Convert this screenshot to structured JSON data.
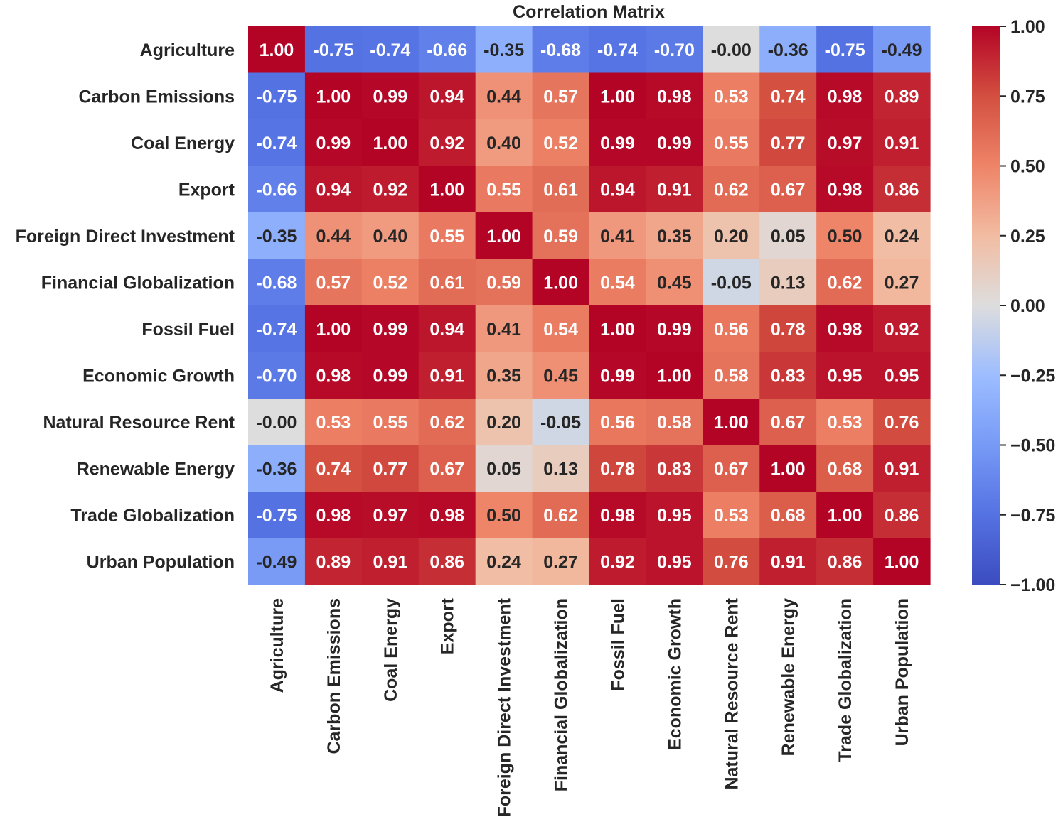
{
  "chart_data": {
    "type": "heatmap",
    "title": "Correlation Matrix",
    "xlabel": "",
    "ylabel": "",
    "labels": [
      "Agriculture",
      "Carbon Emissions",
      "Coal Energy",
      "Export",
      "Foreign Direct Investment",
      "Financial Globalization",
      "Fossil Fuel",
      "Economic Growth",
      "Natural Resource Rent",
      "Renewable Energy",
      "Trade Globalization",
      "Urban Population"
    ],
    "values": [
      [
        1.0,
        -0.75,
        -0.74,
        -0.66,
        -0.35,
        -0.68,
        -0.74,
        -0.7,
        -0.0,
        -0.36,
        -0.75,
        -0.49
      ],
      [
        -0.75,
        1.0,
        0.99,
        0.94,
        0.44,
        0.57,
        1.0,
        0.98,
        0.53,
        0.74,
        0.98,
        0.89
      ],
      [
        -0.74,
        0.99,
        1.0,
        0.92,
        0.4,
        0.52,
        0.99,
        0.99,
        0.55,
        0.77,
        0.97,
        0.91
      ],
      [
        -0.66,
        0.94,
        0.92,
        1.0,
        0.55,
        0.61,
        0.94,
        0.91,
        0.62,
        0.67,
        0.98,
        0.86
      ],
      [
        -0.35,
        0.44,
        0.4,
        0.55,
        1.0,
        0.59,
        0.41,
        0.35,
        0.2,
        0.05,
        0.5,
        0.24
      ],
      [
        -0.68,
        0.57,
        0.52,
        0.61,
        0.59,
        1.0,
        0.54,
        0.45,
        -0.05,
        0.13,
        0.62,
        0.27
      ],
      [
        -0.74,
        1.0,
        0.99,
        0.94,
        0.41,
        0.54,
        1.0,
        0.99,
        0.56,
        0.78,
        0.98,
        0.92
      ],
      [
        -0.7,
        0.98,
        0.99,
        0.91,
        0.35,
        0.45,
        0.99,
        1.0,
        0.58,
        0.83,
        0.95,
        0.95
      ],
      [
        -0.0,
        0.53,
        0.55,
        0.62,
        0.2,
        -0.05,
        0.56,
        0.58,
        1.0,
        0.67,
        0.53,
        0.76
      ],
      [
        -0.36,
        0.74,
        0.77,
        0.67,
        0.05,
        0.13,
        0.78,
        0.83,
        0.67,
        1.0,
        0.68,
        0.91
      ],
      [
        -0.75,
        0.98,
        0.97,
        0.98,
        0.5,
        0.62,
        0.98,
        0.95,
        0.53,
        0.68,
        1.0,
        0.86
      ],
      [
        -0.49,
        0.89,
        0.91,
        0.86,
        0.24,
        0.27,
        0.92,
        0.95,
        0.76,
        0.91,
        0.86,
        1.0
      ]
    ],
    "value_format": "2 decimals",
    "colormap": "coolwarm",
    "vmin": -1.0,
    "vmax": 1.0,
    "colorbar": {
      "ticks": [
        1.0,
        0.75,
        0.5,
        0.25,
        0.0,
        -0.25,
        -0.5,
        -0.75,
        -1.0
      ],
      "tick_labels": [
        "1.00",
        "0.75",
        "0.50",
        "0.25",
        "0.00",
        "−0.25",
        "−0.50",
        "−0.75",
        "−1.00"
      ]
    },
    "colors": {
      "cold": "#3b4cc0",
      "neutral": "#dddddd",
      "hot": "#b40426",
      "text_dark": "#262626",
      "text_light": "#ffffff"
    }
  }
}
